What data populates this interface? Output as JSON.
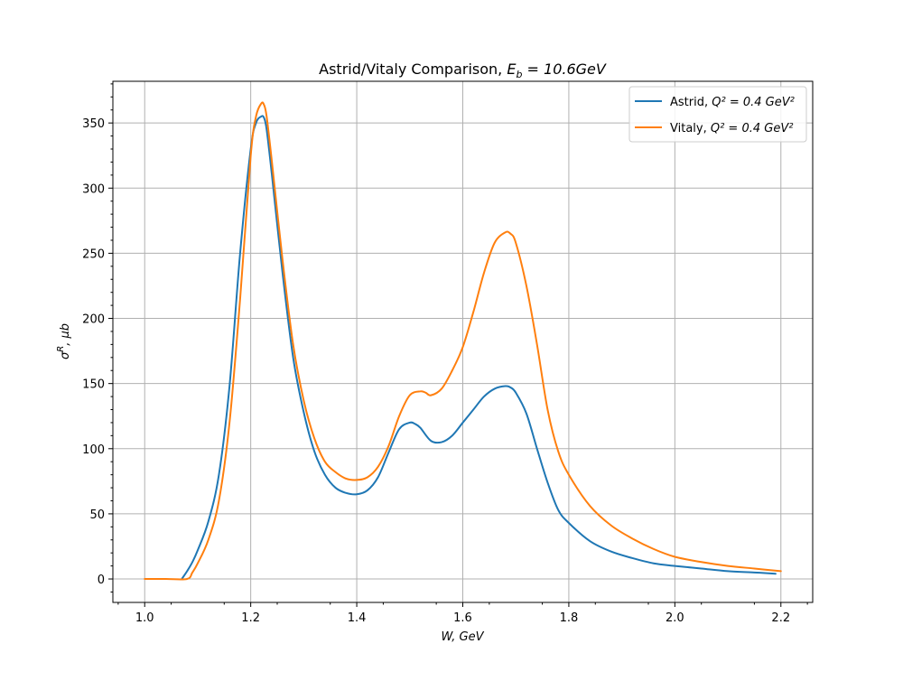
{
  "chart_data": {
    "type": "line",
    "title_main": "Astrid/Vitaly Comparison, ",
    "title_math": "E",
    "title_sub": "b",
    "title_rest": " = 10.6GeV",
    "xlabel": "W, GeV",
    "ylabel_sigma": "σ",
    "ylabel_sup": "R",
    "ylabel_rest": ", μb",
    "xlim": [
      0.94,
      2.26
    ],
    "ylim": [
      -18,
      382
    ],
    "x_ticks": [
      1.0,
      1.2,
      1.4,
      1.6,
      1.8,
      2.0,
      2.2
    ],
    "x_tick_labels": [
      "1.0",
      "1.2",
      "1.4",
      "1.6",
      "1.8",
      "2.0",
      "2.2"
    ],
    "y_ticks": [
      0,
      50,
      100,
      150,
      200,
      250,
      300,
      350
    ],
    "y_tick_labels": [
      "0",
      "50",
      "100",
      "150",
      "200",
      "250",
      "300",
      "350"
    ],
    "grid": true,
    "legend_position": "top-right",
    "series": [
      {
        "name": "Astrid",
        "legend_suffix": "Q² = 0.4 GeV²",
        "color": "#1f77b4",
        "x": [
          1.07,
          1.08,
          1.09,
          1.1,
          1.12,
          1.14,
          1.16,
          1.18,
          1.2,
          1.21,
          1.22,
          1.225,
          1.23,
          1.24,
          1.26,
          1.28,
          1.3,
          1.32,
          1.34,
          1.36,
          1.38,
          1.4,
          1.42,
          1.44,
          1.46,
          1.48,
          1.5,
          1.51,
          1.52,
          1.54,
          1.56,
          1.58,
          1.6,
          1.62,
          1.64,
          1.66,
          1.68,
          1.69,
          1.7,
          1.72,
          1.74,
          1.76,
          1.78,
          1.8,
          1.84,
          1.88,
          1.92,
          1.96,
          2.0,
          2.05,
          2.1,
          2.15,
          2.19
        ],
        "y": [
          0,
          6,
          13,
          22,
          44,
          80,
          148,
          250,
          330,
          350,
          355,
          354,
          345,
          310,
          235,
          170,
          128,
          98,
          80,
          70,
          66,
          65,
          68,
          78,
          97,
          115,
          120,
          119,
          116,
          106,
          105,
          110,
          120,
          130,
          140,
          146,
          148,
          147,
          143,
          127,
          100,
          74,
          53,
          43,
          29,
          21,
          16,
          12,
          10,
          8,
          6,
          5,
          4
        ]
      },
      {
        "name": "Vitaly",
        "legend_suffix": "Q² = 0.4 GeV²",
        "color": "#ff7f0e",
        "x": [
          1.0,
          1.04,
          1.08,
          1.09,
          1.1,
          1.12,
          1.14,
          1.16,
          1.18,
          1.2,
          1.21,
          1.22,
          1.225,
          1.23,
          1.24,
          1.26,
          1.28,
          1.3,
          1.32,
          1.34,
          1.36,
          1.38,
          1.4,
          1.42,
          1.44,
          1.46,
          1.48,
          1.5,
          1.52,
          1.53,
          1.54,
          1.56,
          1.58,
          1.6,
          1.62,
          1.64,
          1.66,
          1.68,
          1.69,
          1.7,
          1.72,
          1.74,
          1.76,
          1.78,
          1.8,
          1.84,
          1.88,
          1.92,
          1.96,
          2.0,
          2.05,
          2.1,
          2.15,
          2.2
        ],
        "y": [
          0,
          0,
          0,
          5,
          12,
          30,
          60,
          120,
          215,
          325,
          355,
          365,
          364,
          355,
          320,
          245,
          180,
          137,
          108,
          90,
          82,
          77,
          76,
          78,
          86,
          102,
          125,
          141,
          144,
          143,
          141,
          146,
          160,
          178,
          205,
          235,
          258,
          266,
          265,
          258,
          225,
          180,
          130,
          98,
          80,
          56,
          41,
          31,
          23,
          17,
          13,
          10,
          8,
          6
        ]
      }
    ]
  }
}
